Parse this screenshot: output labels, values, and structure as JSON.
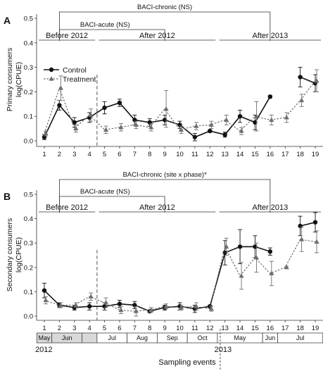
{
  "chart_data": [
    {
      "type": "line",
      "panel_label": "A",
      "ylabel_line1": "Primary consumers",
      "ylabel_line2": "log(CPUE)",
      "ylim": [
        0,
        0.5
      ],
      "yticks": [
        "0.0",
        "0.1",
        "0.2",
        "0.3",
        "0.4",
        "0.5"
      ],
      "x": [
        1,
        2,
        3,
        4,
        5,
        6,
        7,
        8,
        9,
        10,
        11,
        12,
        13,
        14,
        15,
        16,
        17,
        18,
        19
      ],
      "series": [
        {
          "name": "Control",
          "marker": "circle",
          "line": "solid",
          "color": "#111111",
          "values": [
            0.015,
            0.145,
            0.075,
            0.095,
            0.135,
            0.155,
            0.085,
            0.075,
            0.085,
            0.065,
            0.015,
            0.04,
            0.025,
            0.1,
            0.075,
            0.18,
            null,
            0.26,
            0.235
          ],
          "err": [
            0.01,
            0.02,
            0.02,
            0.02,
            0.025,
            0.015,
            0.02,
            0.015,
            0.02,
            0.015,
            0.015,
            0.005,
            0.01,
            0.025,
            0.03,
            0.005,
            null,
            0.04,
            0.035
          ]
        },
        {
          "name": "Treatment",
          "marker": "triangle",
          "line": "dotted",
          "color": "#6f6f6f",
          "values": [
            0.03,
            0.215,
            0.05,
            0.105,
            0.045,
            0.055,
            0.065,
            0.055,
            0.13,
            0.045,
            0.06,
            0.065,
            0.085,
            0.04,
            0.1,
            0.085,
            0.095,
            0.165,
            0.245
          ],
          "err": [
            0.01,
            0.05,
            0.015,
            0.025,
            0.015,
            0.015,
            0.015,
            0.015,
            0.075,
            0.015,
            0.015,
            0.015,
            0.02,
            0.015,
            0.06,
            0.02,
            0.02,
            0.025,
            0.045
          ]
        }
      ],
      "phases": [
        {
          "label": "Before 2012",
          "from": 1,
          "to": 4
        },
        {
          "label": "After 2012",
          "from": 5,
          "to": 12
        },
        {
          "label": "After 2013",
          "from": 13,
          "to": 19
        }
      ],
      "brackets": [
        {
          "label": "BACI-chronic (NS)",
          "from": 2,
          "to": 16
        },
        {
          "label": "BACI-acute (NS)",
          "from": 2,
          "to": 9
        }
      ],
      "legend": "top-left"
    },
    {
      "type": "line",
      "panel_label": "B",
      "ylabel_line1": "Secondary consumers",
      "ylabel_line2": "log(CPUE)",
      "ylim": [
        0,
        0.5
      ],
      "yticks": [
        "0.0",
        "0.1",
        "0.2",
        "0.3",
        "0.4",
        "0.5"
      ],
      "x": [
        1,
        2,
        3,
        4,
        5,
        6,
        7,
        8,
        9,
        10,
        11,
        12,
        13,
        14,
        15,
        16,
        17,
        18,
        19
      ],
      "series": [
        {
          "name": "Control",
          "marker": "circle",
          "line": "solid",
          "color": "#111111",
          "values": [
            0.105,
            0.045,
            0.035,
            0.04,
            0.04,
            0.05,
            0.045,
            0.02,
            0.035,
            0.04,
            0.03,
            0.04,
            0.26,
            0.285,
            0.285,
            0.265,
            null,
            0.37,
            0.385
          ],
          "err": [
            0.03,
            0.01,
            0.01,
            0.015,
            0.015,
            0.015,
            0.015,
            0.005,
            0.01,
            0.015,
            0.015,
            0.005,
            0.05,
            0.07,
            0.045,
            0.015,
            null,
            0.04,
            0.04
          ]
        },
        {
          "name": "Treatment",
          "marker": "triangle",
          "line": "dotted",
          "color": "#6f6f6f",
          "values": [
            0.065,
            0.045,
            0.045,
            0.08,
            0.055,
            0.025,
            0.02,
            0.025,
            0.04,
            0.035,
            0.04,
            0.03,
            0.285,
            0.165,
            0.24,
            0.175,
            0.2,
            0.315,
            0.305
          ],
          "err": [
            0.015,
            0.01,
            0.01,
            0.015,
            0.02,
            0.015,
            0.02,
            0.01,
            0.01,
            0.01,
            0.015,
            0.01,
            0.035,
            0.055,
            0.06,
            0.05,
            0.005,
            0.05,
            0.045
          ]
        }
      ],
      "phases": [
        {
          "label": "Before 2012",
          "from": 1,
          "to": 4
        },
        {
          "label": "After 2012",
          "from": 5,
          "to": 12
        },
        {
          "label": "After 2013",
          "from": 13,
          "to": 19
        }
      ],
      "brackets": [
        {
          "label": "BACI-chronic (site x phase)*",
          "from": 2,
          "to": 16
        },
        {
          "label": "BACI-acute (NS)",
          "from": 2,
          "to": 9
        }
      ]
    }
  ],
  "xlabel": "Sampling events",
  "month_strip": {
    "months": [
      {
        "label": "May",
        "from": 0.5,
        "to": 1.5,
        "shaded": true
      },
      {
        "label": "Jun",
        "from": 1.5,
        "to": 3.5,
        "shaded": true
      },
      {
        "label": "",
        "from": 3.5,
        "to": 4.5,
        "shaded": true
      },
      {
        "label": "Jul",
        "from": 4.5,
        "to": 6.5,
        "shaded": false
      },
      {
        "label": "Aug",
        "from": 6.5,
        "to": 8.5,
        "shaded": false
      },
      {
        "label": "Sep",
        "from": 8.5,
        "to": 10.5,
        "shaded": false
      },
      {
        "label": "Oct",
        "from": 10.5,
        "to": 12.5,
        "shaded": false
      },
      {
        "label": "May",
        "from": 12.5,
        "to": 15.5,
        "shaded": false
      },
      {
        "label": "Jun",
        "from": 15.5,
        "to": 16.5,
        "shaded": false
      },
      {
        "label": "Jul",
        "from": 16.5,
        "to": 19.5,
        "shaded": false
      }
    ],
    "years": [
      {
        "label": "2012",
        "at": 1
      },
      {
        "label": "2013",
        "at": 13
      }
    ]
  }
}
